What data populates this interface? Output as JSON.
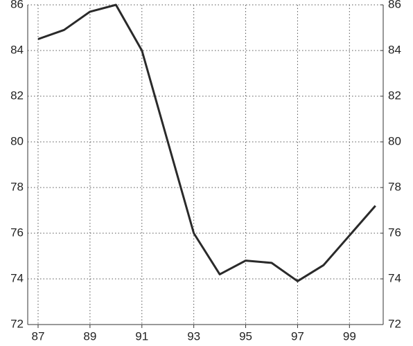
{
  "chart_data": {
    "type": "line",
    "x": [
      87,
      88,
      89,
      90,
      91,
      92,
      93,
      94,
      95,
      96,
      97,
      98,
      99,
      100
    ],
    "series": [
      {
        "color": "#2a2a2a",
        "values": [
          84.5,
          84.9,
          85.7,
          86.0,
          84.0,
          80.0,
          76.0,
          74.2,
          74.8,
          74.7,
          73.9,
          74.6,
          75.9,
          77.2
        ]
      }
    ],
    "xlim": [
      86.6,
      100.3
    ],
    "xticks": [
      87,
      89,
      91,
      93,
      95,
      97,
      99
    ],
    "ylim": [
      72,
      86
    ],
    "yticks": [
      72,
      74,
      76,
      78,
      80,
      82,
      84,
      86
    ],
    "y2lim": [
      72,
      86
    ],
    "y2ticks": [
      72,
      74,
      76,
      78,
      80,
      82,
      84,
      86
    ],
    "grid": true
  }
}
